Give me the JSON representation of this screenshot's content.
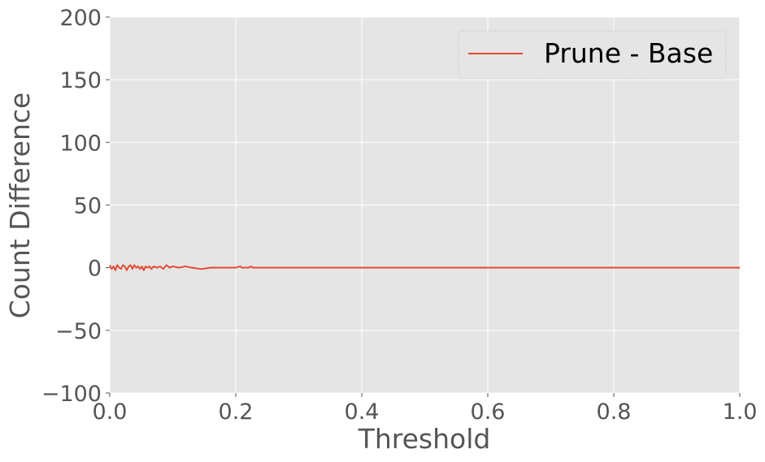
{
  "chart_data": {
    "type": "line",
    "title": "",
    "xlabel": "Threshold",
    "ylabel": "Count Difference",
    "xlim": [
      0.0,
      1.0
    ],
    "ylim": [
      -100,
      200
    ],
    "xticks": [
      0.0,
      0.2,
      0.4,
      0.6,
      0.8,
      1.0
    ],
    "xtick_labels": [
      "0.0",
      "0.2",
      "0.4",
      "0.6",
      "0.8",
      "1.0"
    ],
    "yticks": [
      -100,
      -50,
      0,
      50,
      100,
      150,
      200
    ],
    "ytick_labels": [
      "−100",
      "−50",
      "0",
      "50",
      "100",
      "150",
      "200"
    ],
    "grid": true,
    "legend_position": "upper-right",
    "colors": {
      "plot_bg": "#e5e5e5",
      "grid": "#ffffff",
      "series": "#e24a33",
      "text": "#555555"
    },
    "series": [
      {
        "name": "Prune - Base",
        "x": [
          0.0,
          0.003,
          0.006,
          0.009,
          0.012,
          0.015,
          0.018,
          0.021,
          0.024,
          0.027,
          0.03,
          0.033,
          0.036,
          0.039,
          0.042,
          0.045,
          0.048,
          0.051,
          0.054,
          0.057,
          0.06,
          0.063,
          0.066,
          0.07,
          0.075,
          0.08,
          0.085,
          0.09,
          0.095,
          0.1,
          0.11,
          0.12,
          0.13,
          0.145,
          0.16,
          0.2,
          0.207,
          0.21,
          0.22,
          0.224,
          0.227,
          0.23,
          0.3,
          0.4,
          0.5,
          0.6,
          0.7,
          0.8,
          0.9,
          1.0
        ],
        "y": [
          2,
          -1,
          1,
          -2,
          2,
          0,
          -1,
          2,
          1,
          -2,
          1,
          2,
          -1,
          2,
          0,
          1,
          -1,
          1,
          -2,
          1,
          0,
          1,
          -1,
          1,
          0,
          1,
          -1,
          2,
          0,
          1,
          0,
          1,
          0,
          -1,
          0,
          0,
          1,
          0,
          0,
          1,
          0,
          0,
          0,
          0,
          0,
          0,
          0,
          0,
          0,
          0
        ]
      }
    ]
  }
}
